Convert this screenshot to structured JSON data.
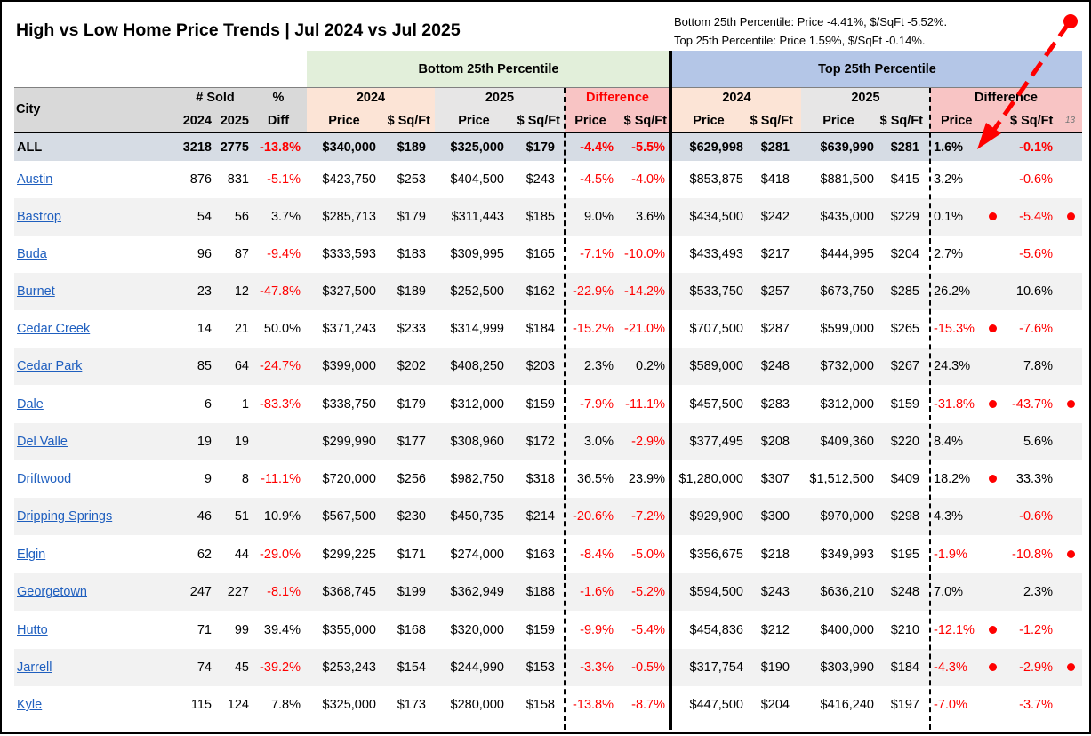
{
  "title": "High vs Low Home Price Trends | Jul 2024 vs Jul 2025",
  "notes": [
    "Bottom 25th Percentile: Price -4.41%, $/SqFt -5.52%.",
    "Top 25th Percentile: Price 1.59%, $/SqFt -0.14%."
  ],
  "bands": {
    "bottom": "Bottom 25th Percentile",
    "top": "Top 25th Percentile"
  },
  "headers": {
    "city": "City",
    "sold": "# Sold",
    "sold_2024": "2024",
    "sold_2025": "2025",
    "pct": "%",
    "diff": "Diff",
    "y2024": "2024",
    "y2025": "2025",
    "difference": "Difference",
    "price": "Price",
    "sqft": "$ Sq/Ft",
    "faint_label": "13"
  },
  "colors": {
    "negative": "#ff0000",
    "link": "#1f5fbf",
    "arrow": "#ff0000"
  },
  "rows": [
    {
      "city": "ALL",
      "s24": "3218",
      "s25": "2775",
      "pct": "-13.8%",
      "bp24": "$340,000",
      "bs24": "$189",
      "bp25": "$325,000",
      "bs25": "$179",
      "bdp": "-4.4%",
      "bds": "-5.5%",
      "tp24": "$629,998",
      "ts24": "$281",
      "tp25": "$639,990",
      "ts25": "$281",
      "tdp": "1.6%",
      "tds": "-0.1%",
      "dot_p": false,
      "dot_s": false
    },
    {
      "city": "Austin",
      "s24": "876",
      "s25": "831",
      "pct": "-5.1%",
      "bp24": "$423,750",
      "bs24": "$253",
      "bp25": "$404,500",
      "bs25": "$243",
      "bdp": "-4.5%",
      "bds": "-4.0%",
      "tp24": "$853,875",
      "ts24": "$418",
      "tp25": "$881,500",
      "ts25": "$415",
      "tdp": "3.2%",
      "tds": "-0.6%",
      "dot_p": false,
      "dot_s": false
    },
    {
      "city": "Bastrop",
      "s24": "54",
      "s25": "56",
      "pct": "3.7%",
      "bp24": "$285,713",
      "bs24": "$179",
      "bp25": "$311,443",
      "bs25": "$185",
      "bdp": "9.0%",
      "bds": "3.6%",
      "tp24": "$434,500",
      "ts24": "$242",
      "tp25": "$435,000",
      "ts25": "$229",
      "tdp": "0.1%",
      "tds": "-5.4%",
      "dot_p": true,
      "dot_s": true
    },
    {
      "city": "Buda",
      "s24": "96",
      "s25": "87",
      "pct": "-9.4%",
      "bp24": "$333,593",
      "bs24": "$183",
      "bp25": "$309,995",
      "bs25": "$165",
      "bdp": "-7.1%",
      "bds": "-10.0%",
      "tp24": "$433,493",
      "ts24": "$217",
      "tp25": "$444,995",
      "ts25": "$204",
      "tdp": "2.7%",
      "tds": "-5.6%",
      "dot_p": false,
      "dot_s": false
    },
    {
      "city": "Burnet",
      "s24": "23",
      "s25": "12",
      "pct": "-47.8%",
      "bp24": "$327,500",
      "bs24": "$189",
      "bp25": "$252,500",
      "bs25": "$162",
      "bdp": "-22.9%",
      "bds": "-14.2%",
      "tp24": "$533,750",
      "ts24": "$257",
      "tp25": "$673,750",
      "ts25": "$285",
      "tdp": "26.2%",
      "tds": "10.6%",
      "dot_p": false,
      "dot_s": false
    },
    {
      "city": "Cedar Creek",
      "s24": "14",
      "s25": "21",
      "pct": "50.0%",
      "bp24": "$371,243",
      "bs24": "$233",
      "bp25": "$314,999",
      "bs25": "$184",
      "bdp": "-15.2%",
      "bds": "-21.0%",
      "tp24": "$707,500",
      "ts24": "$287",
      "tp25": "$599,000",
      "ts25": "$265",
      "tdp": "-15.3%",
      "tds": "-7.6%",
      "dot_p": true,
      "dot_s": false
    },
    {
      "city": "Cedar Park",
      "s24": "85",
      "s25": "64",
      "pct": "-24.7%",
      "bp24": "$399,000",
      "bs24": "$202",
      "bp25": "$408,250",
      "bs25": "$203",
      "bdp": "2.3%",
      "bds": "0.2%",
      "tp24": "$589,000",
      "ts24": "$248",
      "tp25": "$732,000",
      "ts25": "$267",
      "tdp": "24.3%",
      "tds": "7.8%",
      "dot_p": false,
      "dot_s": false
    },
    {
      "city": "Dale",
      "s24": "6",
      "s25": "1",
      "pct": "-83.3%",
      "bp24": "$338,750",
      "bs24": "$179",
      "bp25": "$312,000",
      "bs25": "$159",
      "bdp": "-7.9%",
      "bds": "-11.1%",
      "tp24": "$457,500",
      "ts24": "$283",
      "tp25": "$312,000",
      "ts25": "$159",
      "tdp": "-31.8%",
      "tds": "-43.7%",
      "dot_p": true,
      "dot_s": true
    },
    {
      "city": "Del Valle",
      "s24": "19",
      "s25": "19",
      "pct": "",
      "bp24": "$299,990",
      "bs24": "$177",
      "bp25": "$308,960",
      "bs25": "$172",
      "bdp": "3.0%",
      "bds": "-2.9%",
      "tp24": "$377,495",
      "ts24": "$208",
      "tp25": "$409,360",
      "ts25": "$220",
      "tdp": "8.4%",
      "tds": "5.6%",
      "dot_p": false,
      "dot_s": false
    },
    {
      "city": "Driftwood",
      "s24": "9",
      "s25": "8",
      "pct": "-11.1%",
      "bp24": "$720,000",
      "bs24": "$256",
      "bp25": "$982,750",
      "bs25": "$318",
      "bdp": "36.5%",
      "bds": "23.9%",
      "tp24": "$1,280,000",
      "ts24": "$307",
      "tp25": "$1,512,500",
      "ts25": "$409",
      "tdp": "18.2%",
      "tds": "33.3%",
      "dot_p": true,
      "dot_s": false
    },
    {
      "city": "Dripping Springs",
      "s24": "46",
      "s25": "51",
      "pct": "10.9%",
      "bp24": "$567,500",
      "bs24": "$230",
      "bp25": "$450,735",
      "bs25": "$214",
      "bdp": "-20.6%",
      "bds": "-7.2%",
      "tp24": "$929,900",
      "ts24": "$300",
      "tp25": "$970,000",
      "ts25": "$298",
      "tdp": "4.3%",
      "tds": "-0.6%",
      "dot_p": false,
      "dot_s": false
    },
    {
      "city": "Elgin",
      "s24": "62",
      "s25": "44",
      "pct": "-29.0%",
      "bp24": "$299,225",
      "bs24": "$171",
      "bp25": "$274,000",
      "bs25": "$163",
      "bdp": "-8.4%",
      "bds": "-5.0%",
      "tp24": "$356,675",
      "ts24": "$218",
      "tp25": "$349,993",
      "ts25": "$195",
      "tdp": "-1.9%",
      "tds": "-10.8%",
      "dot_p": false,
      "dot_s": true
    },
    {
      "city": "Georgetown",
      "s24": "247",
      "s25": "227",
      "pct": "-8.1%",
      "bp24": "$368,745",
      "bs24": "$199",
      "bp25": "$362,949",
      "bs25": "$188",
      "bdp": "-1.6%",
      "bds": "-5.2%",
      "tp24": "$594,500",
      "ts24": "$243",
      "tp25": "$636,210",
      "ts25": "$248",
      "tdp": "7.0%",
      "tds": "2.3%",
      "dot_p": false,
      "dot_s": false
    },
    {
      "city": "Hutto",
      "s24": "71",
      "s25": "99",
      "pct": "39.4%",
      "bp24": "$355,000",
      "bs24": "$168",
      "bp25": "$320,000",
      "bs25": "$159",
      "bdp": "-9.9%",
      "bds": "-5.4%",
      "tp24": "$454,836",
      "ts24": "$212",
      "tp25": "$400,000",
      "ts25": "$210",
      "tdp": "-12.1%",
      "tds": "-1.2%",
      "dot_p": true,
      "dot_s": false
    },
    {
      "city": "Jarrell",
      "s24": "74",
      "s25": "45",
      "pct": "-39.2%",
      "bp24": "$253,243",
      "bs24": "$154",
      "bp25": "$244,990",
      "bs25": "$153",
      "bdp": "-3.3%",
      "bds": "-0.5%",
      "tp24": "$317,754",
      "ts24": "$190",
      "tp25": "$303,990",
      "ts25": "$184",
      "tdp": "-4.3%",
      "tds": "-2.9%",
      "dot_p": true,
      "dot_s": true
    },
    {
      "city": "Kyle",
      "s24": "115",
      "s25": "124",
      "pct": "7.8%",
      "bp24": "$325,000",
      "bs24": "$173",
      "bp25": "$280,000",
      "bs25": "$158",
      "bdp": "-13.8%",
      "bds": "-8.7%",
      "tp24": "$447,500",
      "ts24": "$204",
      "tp25": "$416,240",
      "ts25": "$197",
      "tdp": "-7.0%",
      "tds": "-3.7%",
      "dot_p": false,
      "dot_s": false
    }
  ]
}
